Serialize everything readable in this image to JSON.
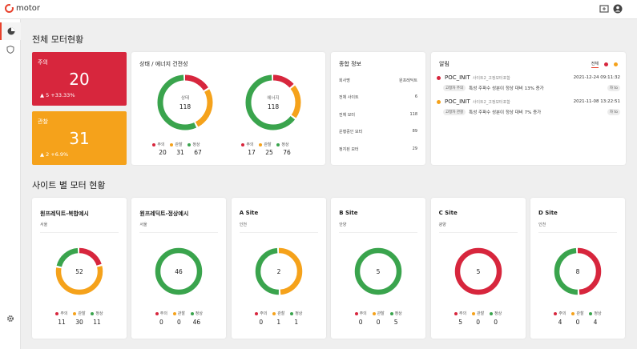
{
  "app": {
    "name": "motor"
  },
  "colors": {
    "red": "#d7263d",
    "orange": "#f5a21b",
    "green": "#3aa44d",
    "accent": "#e8412c"
  },
  "sections": {
    "overview_title": "전체 모터현황",
    "site_title": "사이트 별 모터 현황"
  },
  "kpis": [
    {
      "label": "주의",
      "value": "20",
      "delta": "▲ 5  +33.33%"
    },
    {
      "label": "관찰",
      "value": "31",
      "delta": "▲ 2  +6.9%"
    }
  ],
  "health": {
    "title": "상태 / 에너지 건전성",
    "legend_labels": [
      "주의",
      "관찰",
      "정상"
    ],
    "donuts": [
      {
        "label": "상태",
        "total": "118",
        "values": [
          20,
          31,
          67
        ]
      },
      {
        "label": "에너지",
        "total": "118",
        "values": [
          17,
          25,
          76
        ]
      }
    ]
  },
  "info": {
    "title": "종합 정보",
    "rows": [
      {
        "key": "회사명",
        "value": "원프레딕트"
      },
      {
        "key": "전체 사이트",
        "value": "6"
      },
      {
        "key": "전체 모터",
        "value": "118"
      },
      {
        "key": "운행중인 모터",
        "value": "89"
      },
      {
        "key": "정지된 모터",
        "value": "29"
      }
    ]
  },
  "alerts": {
    "title": "알림",
    "tab_all": "전체",
    "items": [
      {
        "title": "POC_INIT",
        "sub": "사이트2_고정모터포함",
        "time": "2021-12-24 09:11:32",
        "tag": "고정자 주의",
        "desc": "특성 주파수 성분이 정상 대비 13% 증가",
        "detail": "자 to",
        "level": "red"
      },
      {
        "title": "POC_INIT",
        "sub": "사이트2_고정모터포함",
        "time": "2021-11-08 13:22:51",
        "tag": "고정자 관찰",
        "desc": "특성 주파수 성분이 정상 대비 7% 증가",
        "detail": "자 to",
        "level": "orange"
      }
    ]
  },
  "sites": [
    {
      "name": "원프레딕트-복합예시",
      "location": "서울",
      "total": "52",
      "values": [
        11,
        30,
        11
      ]
    },
    {
      "name": "원프레딕트-정상예시",
      "location": "서울",
      "total": "46",
      "values": [
        0,
        0,
        46
      ]
    },
    {
      "name": "A Site",
      "location": "인천",
      "total": "2",
      "values": [
        0,
        1,
        1
      ]
    },
    {
      "name": "B Site",
      "location": "안양",
      "total": "5",
      "values": [
        0,
        0,
        5
      ]
    },
    {
      "name": "C Site",
      "location": "광양",
      "total": "5",
      "values": [
        5,
        0,
        0
      ]
    },
    {
      "name": "D Site",
      "location": "인천",
      "total": "8",
      "values": [
        4,
        0,
        4
      ]
    }
  ]
}
